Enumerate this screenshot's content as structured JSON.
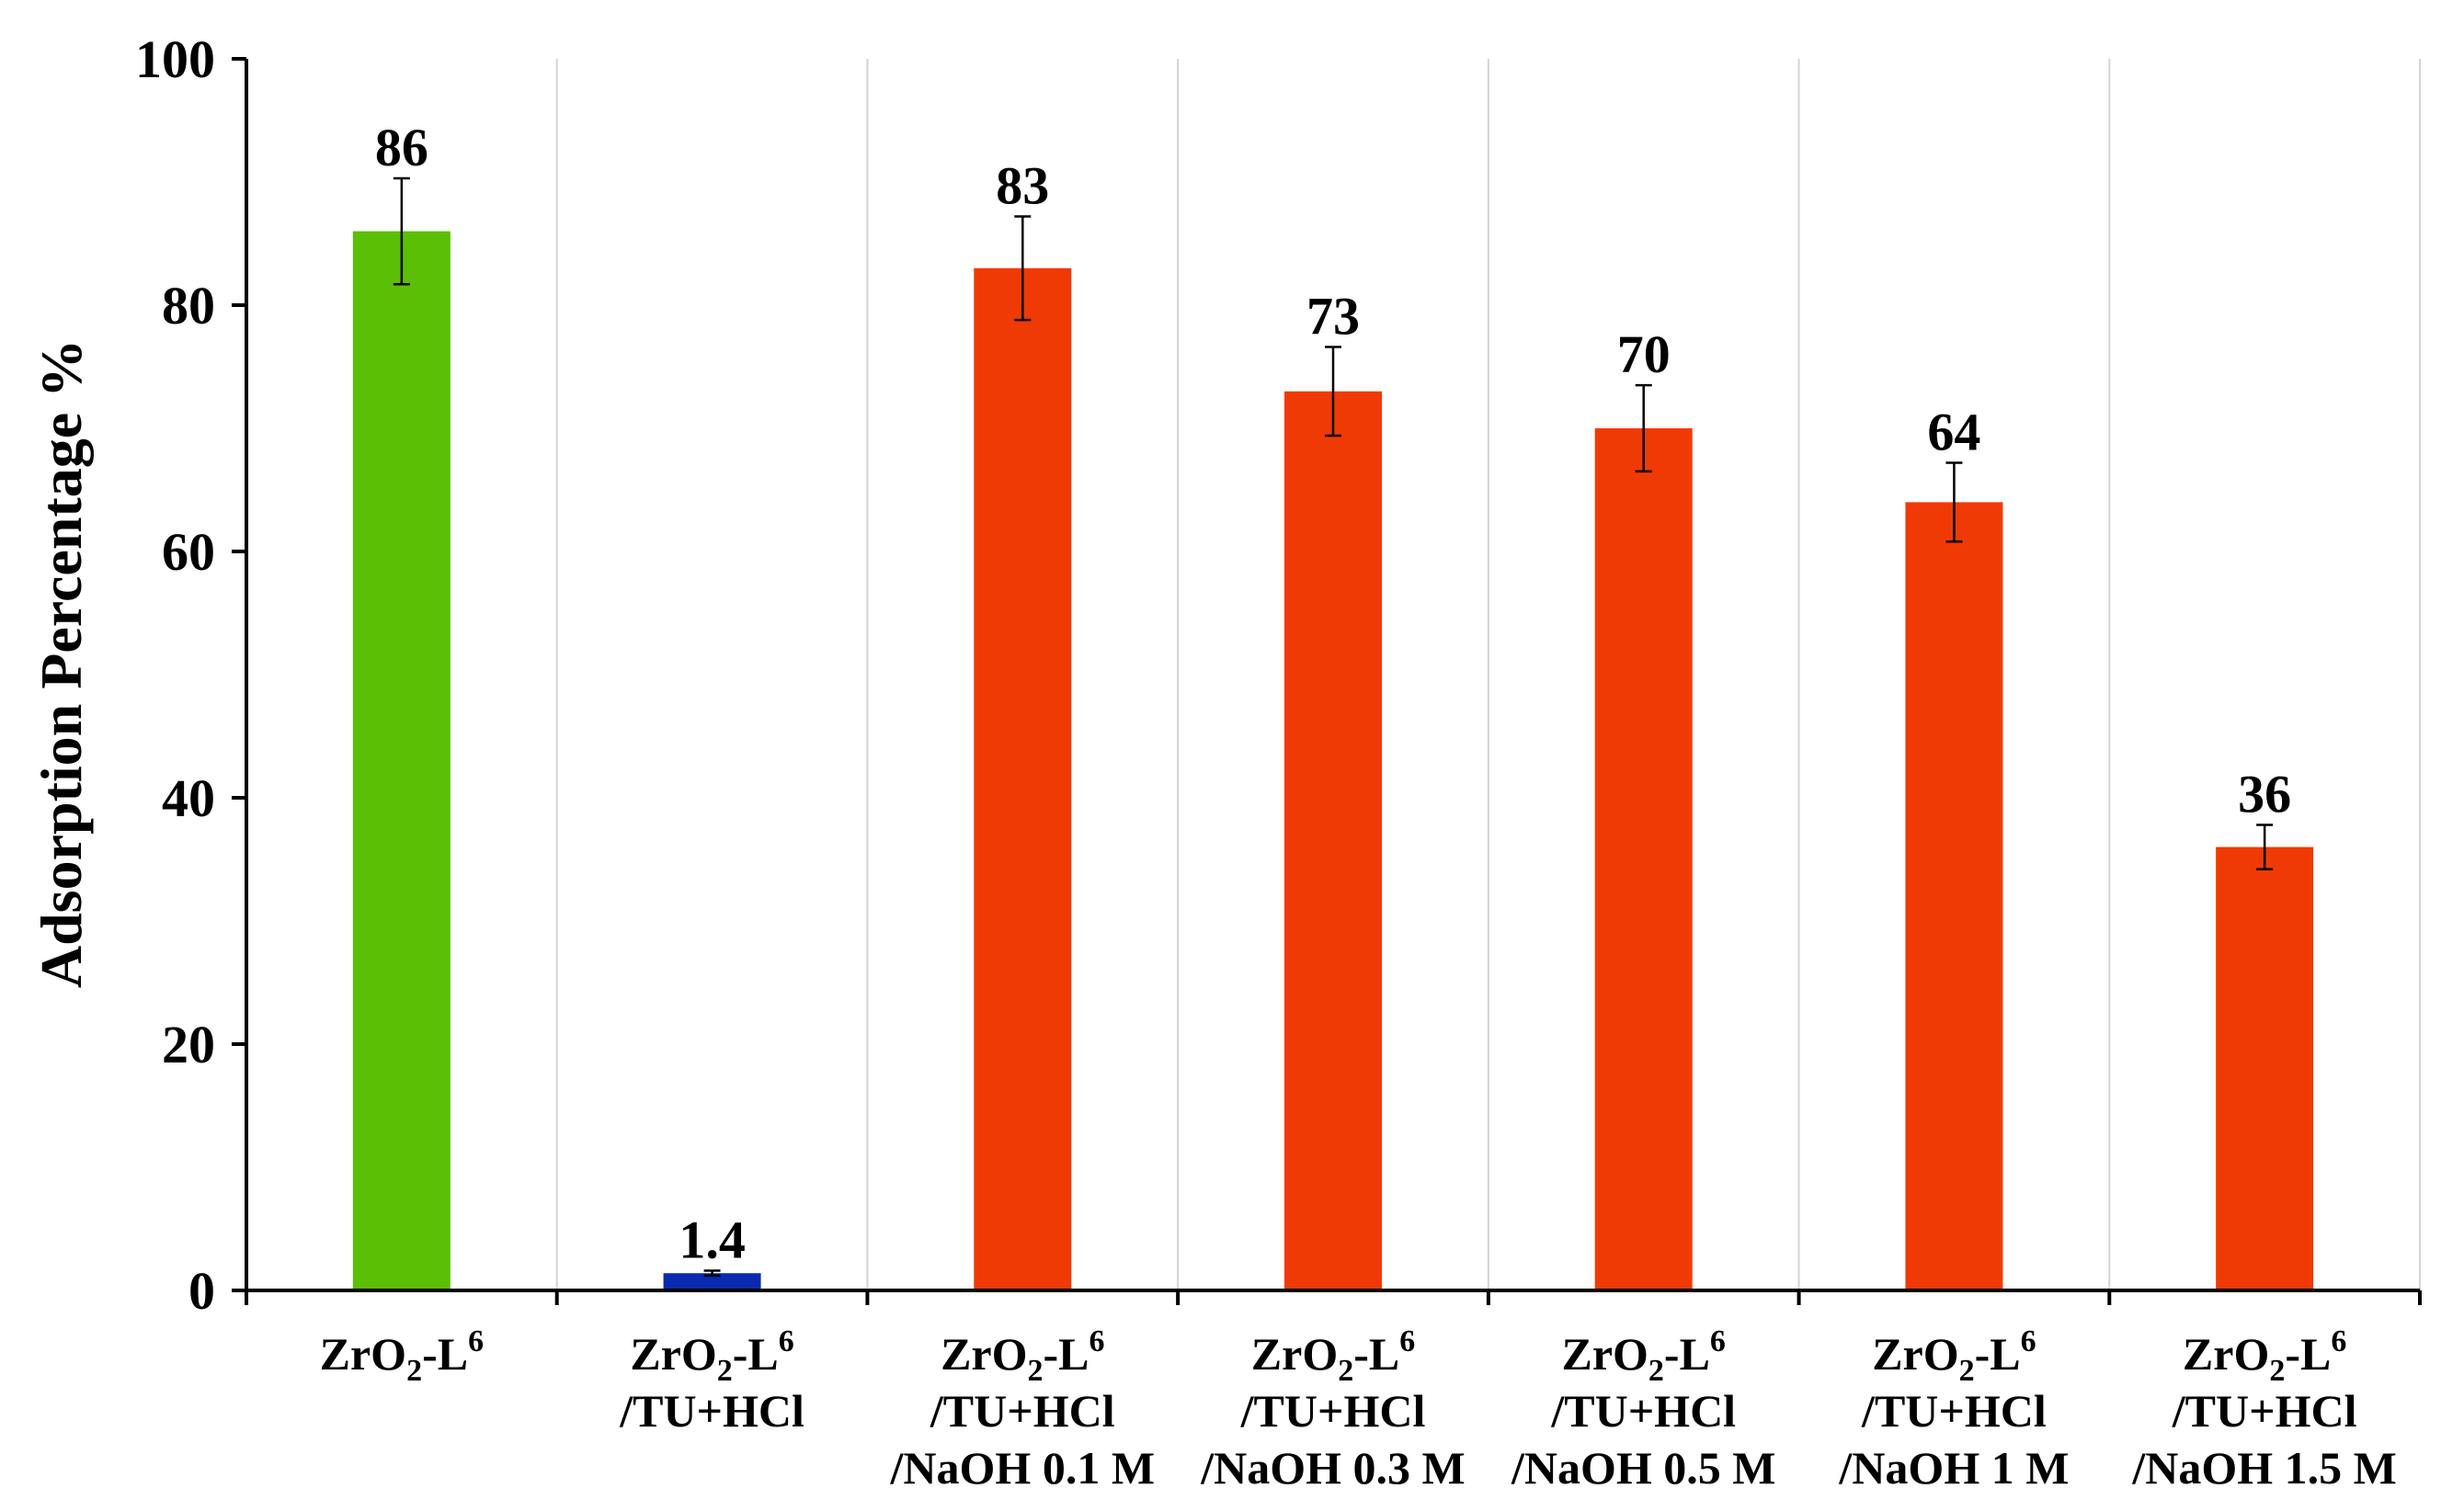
{
  "chart_data": {
    "type": "bar",
    "ylabel": "Adsorption Percentage %",
    "xlabel": "",
    "ylim": [
      0,
      100
    ],
    "yticks": [
      0,
      20,
      40,
      60,
      80,
      100
    ],
    "grid": "vertical separators between categories",
    "categories": [
      {
        "lines": [
          "ZrO2-L6"
        ]
      },
      {
        "lines": [
          "ZrO2-L6",
          "/TU+HCl"
        ]
      },
      {
        "lines": [
          "ZrO2-L6",
          "/TU+HCl",
          "/NaOH 0.1 M"
        ]
      },
      {
        "lines": [
          "ZrO2-L6",
          "/TU+HCl",
          "/NaOH 0.3 M"
        ]
      },
      {
        "lines": [
          "ZrO2-L6",
          "/TU+HCl",
          "/NaOH 0.5 M"
        ]
      },
      {
        "lines": [
          "ZrO2-L6",
          "/TU+HCl",
          "/NaOH 1 M"
        ]
      },
      {
        "lines": [
          "ZrO2-L6",
          "/TU+HCl",
          "/NaOH 1.5 M"
        ]
      }
    ],
    "values": [
      86,
      1.4,
      83,
      73,
      70,
      64,
      36
    ],
    "value_labels": [
      "86",
      "1.4",
      "83",
      "73",
      "70",
      "64",
      "36"
    ],
    "errors": [
      4.3,
      0.2,
      4.2,
      3.6,
      3.5,
      3.2,
      1.8
    ],
    "colors": [
      "#5bbf06",
      "#0a2bb0",
      "#f03a05",
      "#f03a05",
      "#f03a05",
      "#f03a05",
      "#f03a05"
    ]
  }
}
